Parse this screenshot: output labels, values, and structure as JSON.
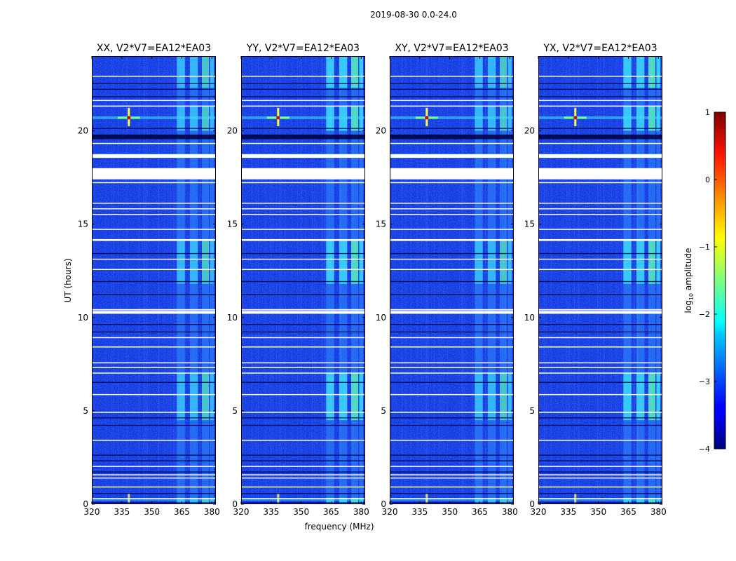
{
  "suptitle": "2019-08-30 0.0-24.0",
  "chart_data": {
    "type": "heatmap",
    "panels": [
      {
        "title": "XX, V2*V7=EA12*EA03"
      },
      {
        "title": "YY, V2*V7=EA12*EA03"
      },
      {
        "title": "XY, V2*V7=EA12*EA03"
      },
      {
        "title": "YX, V2*V7=EA12*EA03"
      }
    ],
    "xlabel": "frequency (MHz)",
    "ylabel": "UT (hours)",
    "xlim": [
      320,
      382
    ],
    "ylim": [
      0,
      24
    ],
    "xticks": [
      320,
      335,
      350,
      365,
      380
    ],
    "yticks": [
      0,
      5,
      10,
      15,
      20
    ],
    "colorbar": {
      "label": "log",
      "label_sub": "10",
      "label_rest": " amplitude",
      "ticks": [
        -4,
        -3,
        -2,
        -1,
        0,
        1
      ],
      "ticklabels": [
        "−4",
        "−3",
        "−2",
        "−1",
        "0",
        "1"
      ],
      "range": [
        -4,
        1
      ],
      "colormap": "jet"
    },
    "blank_rows_hours": [
      [
        0.28,
        0.33
      ],
      [
        0.9,
        0.95
      ],
      [
        1.38,
        1.43
      ],
      [
        1.55,
        1.6
      ],
      [
        2.0,
        2.05
      ],
      [
        3.4,
        3.45
      ],
      [
        4.9,
        4.95
      ],
      [
        5.85,
        5.9
      ],
      [
        7.0,
        7.05
      ],
      [
        7.3,
        7.35
      ],
      [
        7.55,
        7.6
      ],
      [
        8.4,
        8.45
      ],
      [
        8.9,
        8.95
      ],
      [
        10.2,
        10.35
      ],
      [
        10.38,
        10.45
      ],
      [
        12.55,
        12.6
      ],
      [
        13.1,
        13.15
      ],
      [
        14.1,
        14.2
      ],
      [
        14.7,
        14.75
      ],
      [
        15.5,
        15.55
      ],
      [
        15.8,
        15.85
      ],
      [
        16.1,
        16.15
      ],
      [
        17.2,
        17.25
      ],
      [
        17.4,
        18.0
      ],
      [
        18.55,
        18.75
      ],
      [
        19.3,
        19.35
      ],
      [
        21.3,
        21.35
      ],
      [
        21.6,
        21.65
      ],
      [
        22.9,
        22.95
      ]
    ],
    "dark_rows_hours": [
      [
        0.05,
        0.1
      ],
      [
        0.55,
        0.6
      ],
      [
        1.7,
        1.75
      ],
      [
        2.3,
        2.35
      ],
      [
        2.6,
        2.65
      ],
      [
        4.2,
        4.25
      ],
      [
        4.6,
        4.65
      ],
      [
        6.5,
        6.55
      ],
      [
        9.2,
        9.25
      ],
      [
        9.6,
        9.65
      ],
      [
        11.2,
        11.25
      ],
      [
        11.9,
        11.95
      ],
      [
        13.4,
        13.45
      ],
      [
        19.55,
        19.8
      ],
      [
        20.1,
        20.15
      ],
      [
        21.8,
        21.85
      ],
      [
        22.2,
        22.25
      ],
      [
        22.5,
        22.55
      ]
    ],
    "rfi_bands_mhz": [
      [
        362.5,
        366.5
      ],
      [
        369,
        373
      ],
      [
        375,
        378.5
      ],
      [
        379,
        381
      ]
    ],
    "rfi_bright_segments_hours": [
      [
        0.0,
        0.35
      ],
      [
        4.5,
        7.0
      ],
      [
        11.8,
        14.2
      ],
      [
        20.0,
        21.3
      ],
      [
        22.3,
        24.0
      ]
    ],
    "spike": {
      "freq_mhz": 338.5,
      "time_hours": 20.7
    }
  }
}
